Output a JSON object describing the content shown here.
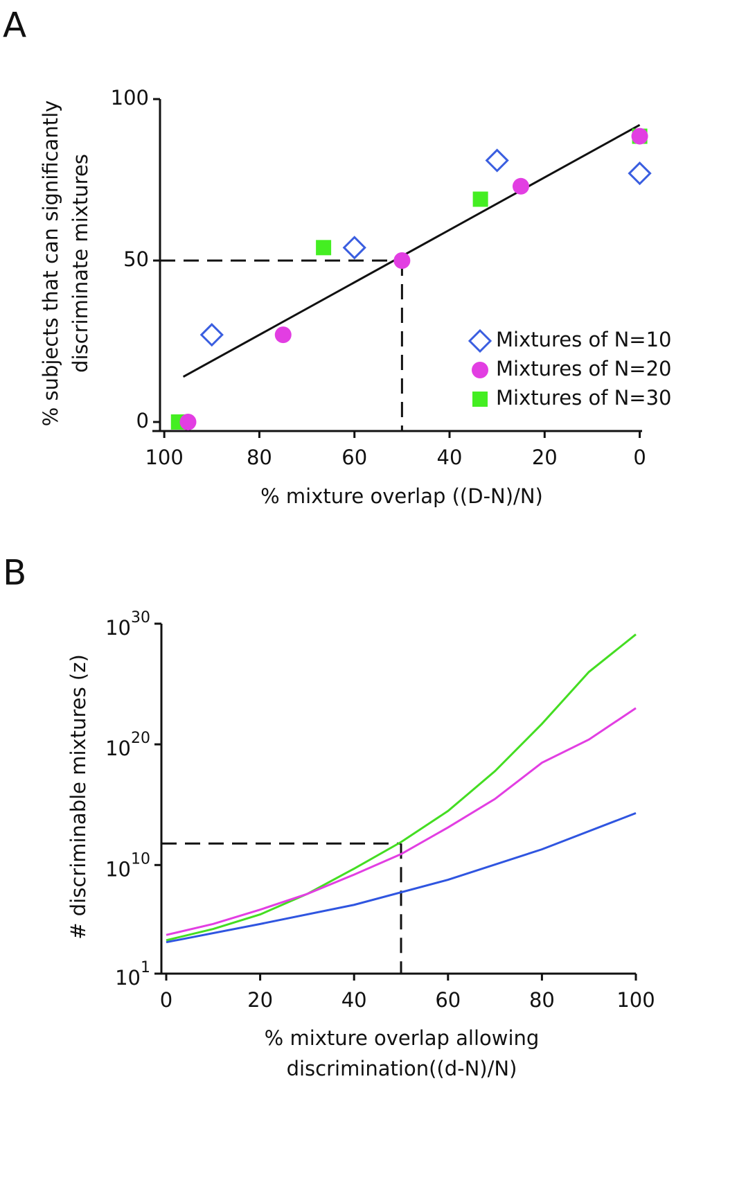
{
  "chart_data": [
    {
      "type": "scatter",
      "panel": "A",
      "x_label": "% mixture overlap ((D-N)/N)",
      "y_label": [
        "% subjects that can significantly",
        "discriminate mixtures"
      ],
      "xlim": [
        102.5,
        -0.5
      ],
      "ylim": [
        -2.8,
        100
      ],
      "xticks": [
        100,
        80,
        60,
        40,
        20,
        0
      ],
      "yticks": [
        0,
        50,
        100
      ],
      "series": [
        {
          "name": "Mixtures of N=10",
          "marker": "diamond",
          "color": "#3a5ee0",
          "x": [
            90,
            60,
            30,
            0
          ],
          "values": [
            27,
            54,
            81,
            77
          ]
        },
        {
          "name": "Mixtures of N=20",
          "marker": "circle",
          "color": "#e23ee2",
          "x": [
            95,
            75,
            50,
            25,
            0
          ],
          "values": [
            0,
            27,
            50,
            73,
            88.5
          ]
        },
        {
          "name": "Mixtures of N=30",
          "marker": "square",
          "color": "#44ee22",
          "x": [
            97,
            66.5,
            33.5,
            0
          ],
          "values": [
            0,
            54,
            69,
            88.5
          ]
        }
      ],
      "fit_line": {
        "x": [
          96,
          0
        ],
        "values": [
          14,
          92
        ],
        "color": "#111111"
      },
      "reference": {
        "x": 50,
        "y": 50
      }
    },
    {
      "type": "line",
      "panel": "B",
      "log_y": true,
      "x_label": [
        "% mixture overlap allowing",
        "discrimination((d-N)/N)"
      ],
      "y_label": [
        "# discriminable mixtures (z)"
      ],
      "xlim": [
        0,
        100
      ],
      "ylim": [
        10,
        1e+30
      ],
      "xticks": [
        0,
        20,
        40,
        60,
        80,
        100
      ],
      "yticks": [
        {
          "value": 10,
          "label": "10^1"
        },
        {
          "value": 10000000000.0,
          "label": "10^10"
        },
        {
          "value": 1e+20,
          "label": "10^20"
        },
        {
          "value": 1e+30,
          "label": "10^30"
        }
      ],
      "series": [
        {
          "color": "#44dd22",
          "x": [
            0,
            10,
            20,
            30,
            40,
            50,
            60,
            70,
            80,
            90,
            100
          ],
          "values": [
            5800.0,
            50000.0,
            800000.0,
            40000000.0,
            5000000000.0,
            800000000000.0,
            300000000000000.0,
            6e+17,
            5e+21,
            1e+26,
            1.3e+29
          ]
        },
        {
          "color": "#e23ee2",
          "x": [
            0,
            10,
            20,
            30,
            40,
            50,
            60,
            70,
            80,
            90,
            100
          ],
          "values": [
            16000.0,
            130000.0,
            2000000.0,
            40000000.0,
            1600000000.0,
            80000000000.0,
            13000000000000.0,
            3000000000000000.0,
            3e+18,
            2.5e+20,
            1e+23
          ]
        },
        {
          "color": "#2f55e0",
          "x": [
            0,
            20,
            40,
            60,
            80,
            100
          ],
          "values": [
            4000.0,
            130000.0,
            5000000.0,
            600000000.0,
            200000000000.0,
            200000000000000.0
          ]
        }
      ],
      "reference": {
        "x": 50,
        "y": 600000000000.0
      }
    }
  ]
}
